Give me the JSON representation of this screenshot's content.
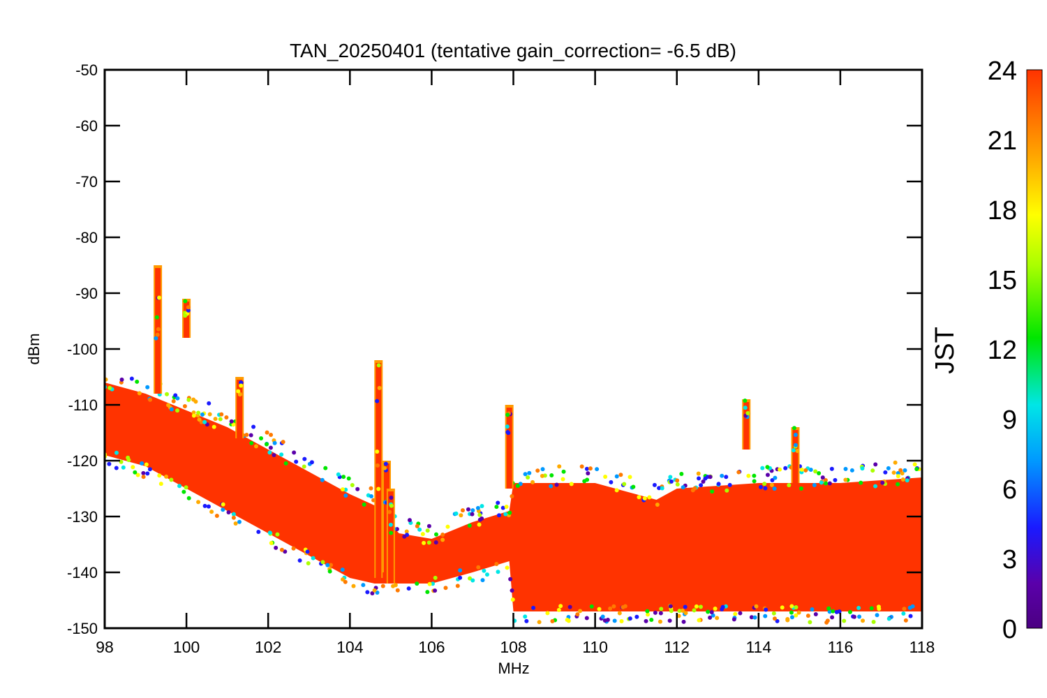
{
  "chart_data": {
    "type": "scatter",
    "title": "TAN_20250401 (tentative gain_correction= -6.5 dB)",
    "xlabel": "MHz",
    "ylabel": "dBm",
    "xlim": [
      98,
      118
    ],
    "ylim": [
      -150,
      -50
    ],
    "x_ticks": [
      "98",
      "100",
      "102",
      "104",
      "106",
      "108",
      "110",
      "112",
      "114",
      "116",
      "118"
    ],
    "y_ticks": [
      "-50",
      "-60",
      "-70",
      "-80",
      "-90",
      "-100",
      "-110",
      "-120",
      "-130",
      "-140",
      "-150"
    ],
    "colorbar": {
      "label": "JST",
      "range": [
        0,
        24
      ],
      "ticks": [
        "0",
        "3",
        "6",
        "9",
        "12",
        "15",
        "18",
        "21",
        "24"
      ],
      "colormap": "rainbow",
      "dominant_color": "#ff3300"
    },
    "grid": false,
    "noise_floor_band": [
      {
        "x": 98.0,
        "y_top": -106,
        "y_bottom": -119
      },
      {
        "x": 99.0,
        "y_top": -108,
        "y_bottom": -121
      },
      {
        "x": 100.0,
        "y_top": -111,
        "y_bottom": -125
      },
      {
        "x": 101.0,
        "y_top": -114,
        "y_bottom": -129
      },
      {
        "x": 102.0,
        "y_top": -118,
        "y_bottom": -133
      },
      {
        "x": 103.0,
        "y_top": -122,
        "y_bottom": -137
      },
      {
        "x": 104.0,
        "y_top": -126,
        "y_bottom": -141
      },
      {
        "x": 104.6,
        "y_top": -128,
        "y_bottom": -142
      },
      {
        "x": 105.2,
        "y_top": -133,
        "y_bottom": -142
      },
      {
        "x": 106.0,
        "y_top": -134,
        "y_bottom": -142
      },
      {
        "x": 107.0,
        "y_top": -131,
        "y_bottom": -140
      },
      {
        "x": 107.9,
        "y_top": -129,
        "y_bottom": -138
      },
      {
        "x": 108.0,
        "y_top": -124,
        "y_bottom": -147
      },
      {
        "x": 110.0,
        "y_top": -124,
        "y_bottom": -147
      },
      {
        "x": 111.5,
        "y_top": -127,
        "y_bottom": -147
      },
      {
        "x": 112.0,
        "y_top": -125,
        "y_bottom": -147
      },
      {
        "x": 114.0,
        "y_top": -124,
        "y_bottom": -147
      },
      {
        "x": 116.0,
        "y_top": -124,
        "y_bottom": -147
      },
      {
        "x": 118.0,
        "y_top": -123,
        "y_bottom": -147
      }
    ],
    "signals": [
      {
        "freq_mhz": 99.3,
        "peak_dbm": -85,
        "base_dbm": -108
      },
      {
        "freq_mhz": 100.0,
        "peak_dbm": -91,
        "base_dbm": -98
      },
      {
        "freq_mhz": 101.3,
        "peak_dbm": -105,
        "base_dbm": -116
      },
      {
        "freq_mhz": 104.7,
        "peak_dbm": -102,
        "base_dbm": -141
      },
      {
        "freq_mhz": 104.9,
        "peak_dbm": -120,
        "base_dbm": -140
      },
      {
        "freq_mhz": 105.0,
        "peak_dbm": -125,
        "base_dbm": -142
      },
      {
        "freq_mhz": 107.9,
        "peak_dbm": -110,
        "base_dbm": -125
      },
      {
        "freq_mhz": 113.7,
        "peak_dbm": -109,
        "base_dbm": -118
      },
      {
        "freq_mhz": 114.9,
        "peak_dbm": -114,
        "base_dbm": -124
      }
    ]
  }
}
